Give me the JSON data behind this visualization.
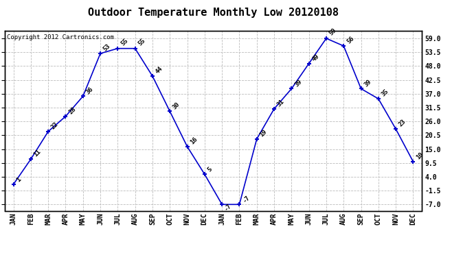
{
  "title": "Outdoor Temperature Monthly Low 20120108",
  "copyright_text": "Copyright 2012 Cartronics.com",
  "x_labels": [
    "JAN",
    "FEB",
    "MAR",
    "APR",
    "MAY",
    "JUN",
    "JUL",
    "AUG",
    "SEP",
    "OCT",
    "NOV",
    "DEC",
    "JAN",
    "FEB",
    "MAR",
    "APR",
    "MAY",
    "JUN",
    "JUL",
    "AUG",
    "SEP",
    "OCT",
    "NOV",
    "DEC"
  ],
  "y_values": [
    1,
    11,
    22,
    28,
    36,
    53,
    55,
    55,
    44,
    30,
    16,
    5,
    -7,
    -7,
    19,
    31,
    39,
    49,
    59,
    56,
    39,
    35,
    23,
    10
  ],
  "y_ticks": [
    -7.0,
    -1.5,
    4.0,
    9.5,
    15.0,
    20.5,
    26.0,
    31.5,
    37.0,
    42.5,
    48.0,
    53.5,
    59.0
  ],
  "ylim": [
    -9.5,
    62
  ],
  "line_color": "#0000cc",
  "marker_color": "#0000cc",
  "bg_color": "#ffffff",
  "plot_bg_color": "#ffffff",
  "grid_color": "#bbbbbb",
  "title_fontsize": 11,
  "tick_fontsize": 7,
  "annotation_fontsize": 6.5,
  "copyright_fontsize": 6.5
}
